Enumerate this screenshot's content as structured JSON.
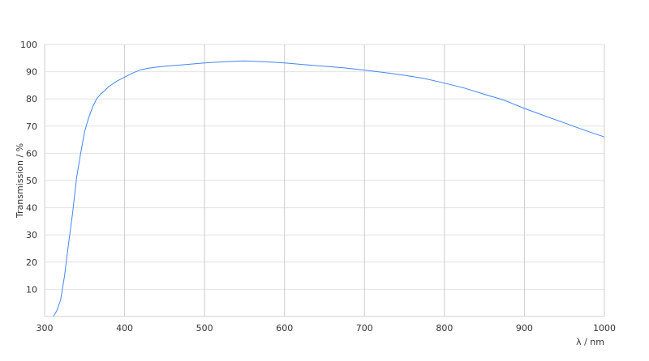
{
  "chart_data": {
    "type": "line",
    "title": "",
    "xlabel": "λ / nm",
    "ylabel": "Transmission / %",
    "xlim": [
      300,
      1000
    ],
    "ylim": [
      0,
      100
    ],
    "xticks": [
      300,
      400,
      500,
      600,
      700,
      800,
      900,
      1000
    ],
    "yticks": [
      10,
      20,
      30,
      40,
      50,
      60,
      70,
      80,
      90,
      100
    ],
    "grid": true,
    "line_color": "#4285f4",
    "series": [
      {
        "x": [
          311,
          315,
          320,
          325,
          330,
          335,
          340,
          345,
          350,
          355,
          360,
          365,
          370,
          375,
          380,
          390,
          400,
          410,
          420,
          430,
          440,
          450,
          475,
          500,
          525,
          550,
          575,
          600,
          625,
          650,
          675,
          700,
          725,
          750,
          775,
          800,
          825,
          850,
          875,
          900,
          925,
          950,
          975,
          1000
        ],
        "y": [
          0,
          2,
          6,
          15,
          27,
          38,
          51,
          60,
          68,
          73,
          77,
          80,
          81.8,
          83,
          84.5,
          86.5,
          88,
          89.5,
          90.7,
          91.3,
          91.7,
          92,
          92.6,
          93.2,
          93.7,
          94,
          93.7,
          93.2,
          92.6,
          92,
          91.4,
          90.6,
          89.7,
          88.7,
          87.5,
          85.8,
          84,
          81.7,
          79.5,
          76.5,
          73.8,
          71.2,
          68.5,
          66
        ]
      }
    ]
  }
}
